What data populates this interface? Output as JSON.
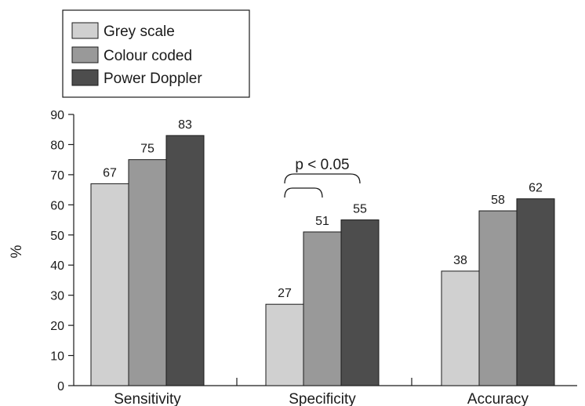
{
  "chart_data": {
    "type": "bar",
    "title": "",
    "xlabel": "",
    "ylabel": "%",
    "ylim": [
      0,
      90
    ],
    "yticks": [
      0,
      10,
      20,
      30,
      40,
      50,
      60,
      70,
      80,
      90
    ],
    "grid": false,
    "legend_position": "top-left",
    "categories": [
      "Sensitivity",
      "Specificity",
      "Accuracy"
    ],
    "series": [
      {
        "name": "Grey scale",
        "values": [
          67,
          27,
          38
        ],
        "color": "#d0d0d0"
      },
      {
        "name": "Colour coded",
        "values": [
          75,
          51,
          58
        ],
        "color": "#999999"
      },
      {
        "name": "Power Doppler",
        "values": [
          83,
          55,
          62
        ],
        "color": "#4d4d4d"
      }
    ],
    "annotations": [
      {
        "text": "p < 0.05",
        "category": "Specificity",
        "from_series": 0,
        "to_series": [
          1,
          2
        ]
      }
    ]
  }
}
